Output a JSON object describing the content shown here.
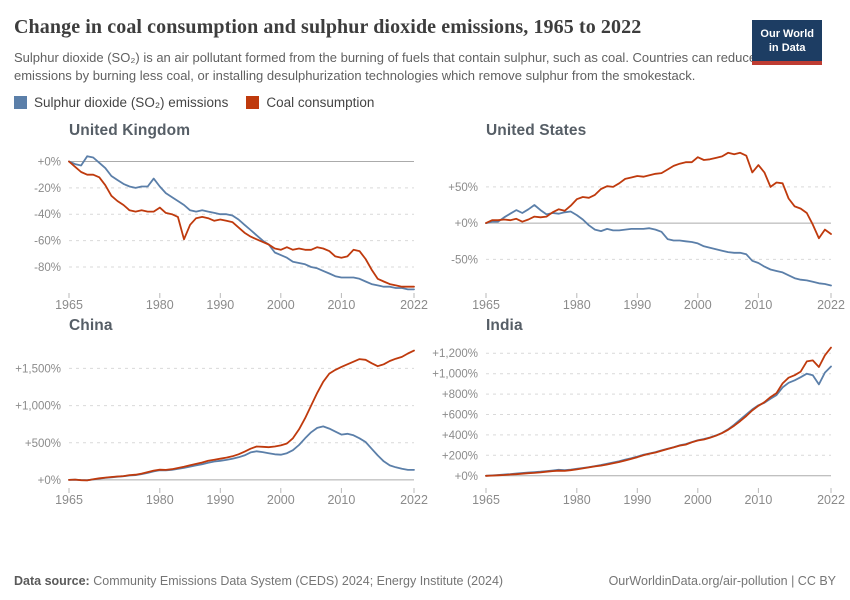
{
  "header": {
    "title": "Change in coal consumption and sulphur dioxide emissions, 1965 to 2022",
    "subtitle": "Sulphur dioxide (SO₂) is an air pollutant formed from the burning of fuels that contain sulphur, such as coal. Countries can reduce SO₂ emissions by burning less coal, or installing desulphurization technologies which remove sulphur from the smokestack.",
    "logo": {
      "line1": "Our World",
      "line2": "in Data"
    }
  },
  "legend": {
    "items": [
      {
        "label": "Sulphur dioxide (SO₂) emissions",
        "color": "#5b7fa9"
      },
      {
        "label": "Coal consumption",
        "color": "#bf3a0d"
      }
    ]
  },
  "footer": {
    "source_label": "Data source:",
    "source_text": "Community Emissions Data System (CEDS) 2024; Energy Institute (2024)",
    "right_text": "OurWorldinData.org/air-pollution | CC BY"
  },
  "colors": {
    "so2_line": "#5b7fa9",
    "coal_line": "#bf3a0d",
    "zero_line": "#ababab",
    "gridline": "#d9d9d9",
    "tick": "#b8b8b8",
    "logo_bg": "#1d3d63",
    "logo_bar": "#be3c32"
  },
  "chart_data": [
    {
      "type": "line",
      "title": "United Kingdom",
      "x_range": [
        1965,
        2022
      ],
      "x_step": 1,
      "xticks": [
        1965,
        1980,
        1990,
        2000,
        2010,
        2022
      ],
      "ylim": [
        -99,
        11
      ],
      "yticks": [
        [
          0,
          "+0%"
        ],
        [
          -20,
          "-20%"
        ],
        [
          -40,
          "-40%"
        ],
        [
          -60,
          "-60%"
        ],
        [
          -80,
          "-80%"
        ]
      ],
      "unit": "% change since 1965",
      "series": [
        {
          "name": "Sulphur dioxide (SO₂) emissions",
          "color": "#5b7fa9",
          "values": [
            0,
            -2,
            -3,
            4,
            3,
            -1,
            -5,
            -11,
            -14,
            -17,
            -19,
            -20,
            -19,
            -19,
            -13,
            -19,
            -24,
            -27,
            -30,
            -33,
            -37,
            -38,
            -37,
            -38,
            -39,
            -40,
            -40,
            -41,
            -44,
            -48,
            -52,
            -56,
            -60,
            -63,
            -69,
            -71,
            -73,
            -76,
            -77,
            -78,
            -80,
            -81,
            -83,
            -85,
            -87,
            -88,
            -88,
            -88,
            -89,
            -91,
            -93,
            -94,
            -95,
            -95,
            -96,
            -96,
            -97,
            -97
          ]
        },
        {
          "name": "Coal consumption",
          "color": "#bf3a0d",
          "values": [
            0,
            -4,
            -8,
            -10,
            -10,
            -12,
            -18,
            -26,
            -30,
            -33,
            -37,
            -38,
            -37,
            -38,
            -38,
            -35,
            -39,
            -40,
            -42,
            -59,
            -48,
            -43,
            -42,
            -43,
            -45,
            -44,
            -45,
            -46,
            -50,
            -54,
            -57,
            -59,
            -61,
            -63,
            -66,
            -67,
            -65,
            -67,
            -66,
            -67,
            -67,
            -65,
            -66,
            -68,
            -72,
            -73,
            -72,
            -67,
            -68,
            -74,
            -82,
            -89,
            -91,
            -93,
            -94,
            -95,
            -95,
            -95
          ]
        }
      ]
    },
    {
      "type": "line",
      "title": "United States",
      "x_range": [
        1965,
        2022
      ],
      "x_step": 1,
      "xticks": [
        1965,
        1980,
        1990,
        2000,
        2010,
        2022
      ],
      "ylim": [
        -95,
        105
      ],
      "yticks": [
        [
          50,
          "+50%"
        ],
        [
          0,
          "+0%"
        ],
        [
          -50,
          "-50%"
        ]
      ],
      "unit": "% change since 1965",
      "series": [
        {
          "name": "Sulphur dioxide (SO₂) emissions",
          "color": "#5b7fa9",
          "values": [
            0,
            2,
            2,
            8,
            13,
            18,
            14,
            19,
            25,
            18,
            12,
            14,
            13,
            15,
            16,
            11,
            5,
            -3,
            -9,
            -11,
            -8,
            -10,
            -10,
            -9,
            -8,
            -8,
            -8,
            -7,
            -9,
            -12,
            -22,
            -24,
            -24,
            -25,
            -26,
            -28,
            -32,
            -34,
            -36,
            -38,
            -40,
            -41,
            -41,
            -43,
            -52,
            -55,
            -60,
            -64,
            -66,
            -68,
            -72,
            -76,
            -78,
            -79,
            -81,
            -83,
            -84,
            -86
          ]
        },
        {
          "name": "Coal consumption",
          "color": "#bf3a0d",
          "values": [
            0,
            4,
            4,
            5,
            4,
            6,
            2,
            5,
            9,
            8,
            9,
            15,
            19,
            17,
            24,
            33,
            36,
            35,
            39,
            47,
            51,
            50,
            55,
            61,
            63,
            65,
            64,
            66,
            68,
            69,
            74,
            79,
            82,
            84,
            84,
            91,
            87,
            88,
            90,
            92,
            97,
            95,
            97,
            93,
            70,
            80,
            70,
            50,
            56,
            55,
            34,
            23,
            20,
            14,
            -2,
            -21,
            -9,
            -15
          ]
        }
      ]
    },
    {
      "type": "line",
      "title": "China",
      "x_range": [
        1965,
        2022
      ],
      "x_step": 1,
      "xticks": [
        1965,
        1980,
        1990,
        2000,
        2010,
        2022
      ],
      "ylim": [
        -95,
        1855
      ],
      "yticks": [
        [
          1500,
          "+1,500%"
        ],
        [
          1000,
          "+1,000%"
        ],
        [
          500,
          "+500%"
        ],
        [
          0,
          "+0%"
        ]
      ],
      "unit": "% change since 1965",
      "series": [
        {
          "name": "Sulphur dioxide (SO₂) emissions",
          "color": "#5b7fa9",
          "values": [
            0,
            3,
            -2,
            -4,
            6,
            18,
            28,
            36,
            43,
            50,
            60,
            65,
            78,
            95,
            115,
            130,
            128,
            135,
            148,
            162,
            180,
            195,
            212,
            232,
            248,
            258,
            270,
            285,
            305,
            330,
            370,
            385,
            375,
            360,
            345,
            340,
            360,
            400,
            470,
            560,
            640,
            700,
            720,
            690,
            650,
            610,
            620,
            600,
            560,
            510,
            420,
            330,
            250,
            195,
            170,
            150,
            135,
            135
          ]
        },
        {
          "name": "Coal consumption",
          "color": "#bf3a0d",
          "values": [
            0,
            4,
            -4,
            -6,
            8,
            22,
            32,
            40,
            46,
            52,
            65,
            70,
            85,
            105,
            125,
            138,
            135,
            145,
            160,
            178,
            198,
            215,
            235,
            258,
            272,
            285,
            300,
            318,
            345,
            380,
            420,
            450,
            445,
            440,
            450,
            465,
            490,
            560,
            680,
            830,
            1000,
            1170,
            1320,
            1430,
            1480,
            1520,
            1555,
            1590,
            1625,
            1615,
            1570,
            1530,
            1555,
            1600,
            1630,
            1655,
            1700,
            1740
          ]
        }
      ]
    },
    {
      "type": "line",
      "title": "India",
      "x_range": [
        1965,
        2022
      ],
      "x_step": 1,
      "xticks": [
        1965,
        1980,
        1990,
        2000,
        2010,
        2022
      ],
      "ylim": [
        -110,
        1310
      ],
      "yticks": [
        [
          1200,
          "+1,200%"
        ],
        [
          1000,
          "+1,000%"
        ],
        [
          800,
          "+800%"
        ],
        [
          600,
          "+600%"
        ],
        [
          400,
          "+400%"
        ],
        [
          200,
          "+200%"
        ],
        [
          0,
          "+0%"
        ]
      ],
      "unit": "% change since 1965",
      "series": [
        {
          "name": "Sulphur dioxide (SO₂) emissions",
          "color": "#5b7fa9",
          "values": [
            0,
            4,
            8,
            12,
            16,
            22,
            27,
            32,
            36,
            40,
            46,
            52,
            58,
            55,
            60,
            68,
            76,
            85,
            95,
            105,
            118,
            130,
            142,
            158,
            172,
            188,
            205,
            218,
            232,
            248,
            265,
            280,
            298,
            310,
            330,
            348,
            360,
            375,
            395,
            420,
            455,
            500,
            550,
            600,
            650,
            690,
            715,
            755,
            790,
            865,
            910,
            935,
            965,
            1000,
            985,
            895,
            1010,
            1070
          ]
        },
        {
          "name": "Coal consumption",
          "color": "#bf3a0d",
          "values": [
            0,
            2,
            5,
            8,
            12,
            15,
            20,
            25,
            28,
            33,
            40,
            46,
            50,
            48,
            55,
            62,
            72,
            82,
            92,
            100,
            110,
            122,
            135,
            150,
            165,
            182,
            200,
            215,
            228,
            245,
            262,
            278,
            295,
            305,
            328,
            345,
            355,
            372,
            392,
            418,
            450,
            490,
            535,
            585,
            640,
            685,
            720,
            770,
            810,
            905,
            960,
            985,
            1020,
            1120,
            1130,
            1065,
            1180,
            1255
          ]
        }
      ]
    }
  ]
}
